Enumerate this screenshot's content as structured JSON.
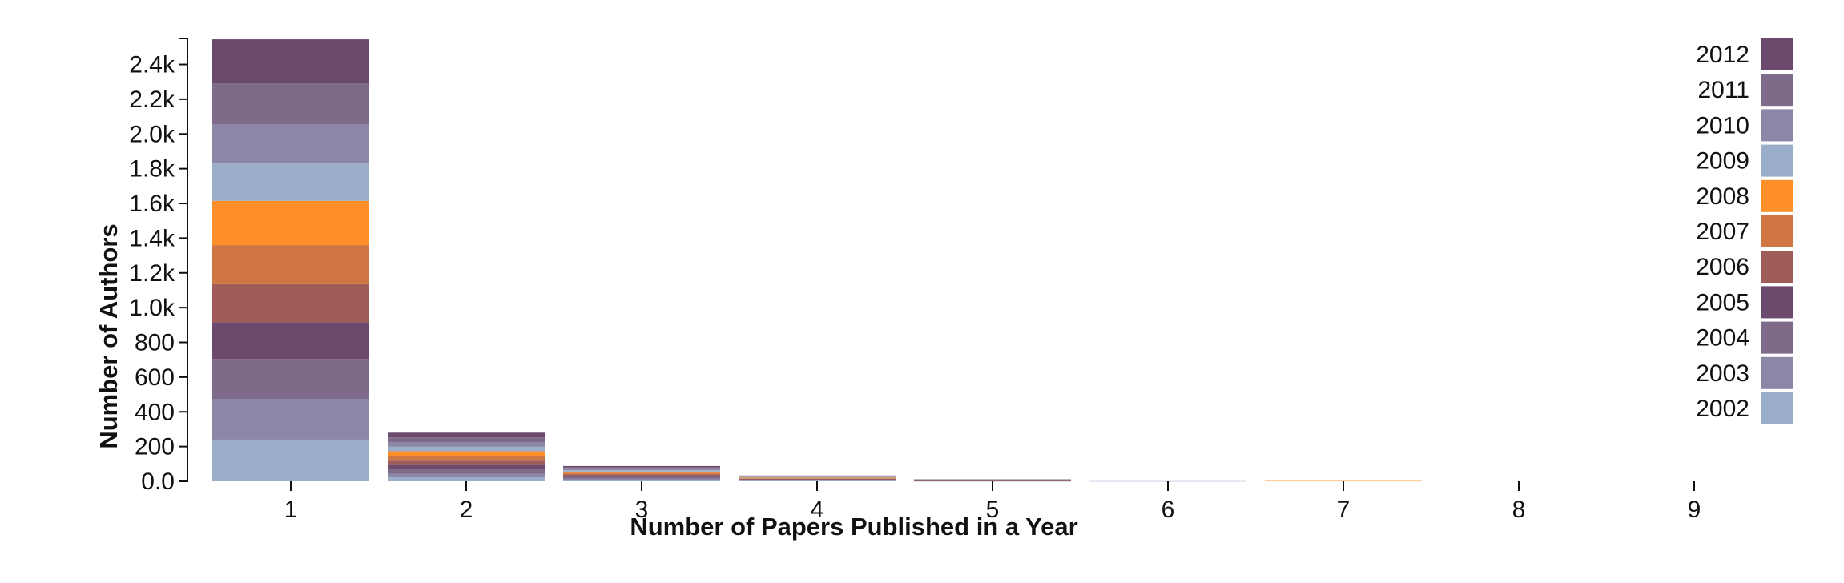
{
  "chart_data": {
    "type": "bar",
    "stacked": true,
    "xlabel": "Number of Papers Published in a Year",
    "ylabel": "Number of Authors",
    "ylim": [
      0,
      2550
    ],
    "yticks": [
      0,
      200,
      400,
      600,
      800,
      1000,
      1200,
      1400,
      1600,
      1800,
      2000,
      2200,
      2400
    ],
    "ytick_labels": [
      "0.0",
      "200",
      "400",
      "600",
      "800",
      "1.0k",
      "1.2k",
      "1.4k",
      "1.6k",
      "1.8k",
      "2.0k",
      "2.2k",
      "2.4k"
    ],
    "categories": [
      "1",
      "2",
      "3",
      "4",
      "5",
      "6",
      "7",
      "8",
      "9"
    ],
    "legend_position": "right",
    "series": [
      {
        "name": "2002",
        "color": "#9aadc9",
        "values": [
          240,
          22,
          8,
          3,
          1,
          1,
          0,
          0,
          0
        ]
      },
      {
        "name": "2003",
        "color": "#8a88a6",
        "values": [
          235,
          22,
          8,
          3,
          1,
          0,
          0,
          0,
          0
        ]
      },
      {
        "name": "2004",
        "color": "#7e6a89",
        "values": [
          230,
          25,
          8,
          3,
          1,
          0,
          0,
          0,
          0
        ]
      },
      {
        "name": "2005",
        "color": "#6c4a6e",
        "values": [
          210,
          25,
          8,
          3,
          1,
          0,
          0,
          0,
          0
        ]
      },
      {
        "name": "2006",
        "color": "#9f5c58",
        "values": [
          220,
          25,
          8,
          3,
          1,
          0,
          0,
          0,
          0
        ]
      },
      {
        "name": "2007",
        "color": "#d07644",
        "values": [
          225,
          26,
          8,
          3,
          1,
          0,
          0,
          0,
          0
        ]
      },
      {
        "name": "2008",
        "color": "#ff8f2a",
        "values": [
          255,
          28,
          8,
          3,
          1,
          0,
          2,
          0,
          0
        ]
      },
      {
        "name": "2009",
        "color": "#9aadc9",
        "values": [
          215,
          26,
          8,
          3,
          1,
          0,
          0,
          0,
          0
        ]
      },
      {
        "name": "2010",
        "color": "#8a88a6",
        "values": [
          225,
          27,
          8,
          3,
          1,
          0,
          0,
          0,
          0
        ]
      },
      {
        "name": "2011",
        "color": "#7e6a89",
        "values": [
          235,
          27,
          8,
          3,
          1,
          0,
          0,
          0,
          0
        ]
      },
      {
        "name": "2012",
        "color": "#6c4a6e",
        "values": [
          255,
          27,
          8,
          3,
          1,
          0,
          0,
          0,
          0
        ]
      }
    ]
  }
}
